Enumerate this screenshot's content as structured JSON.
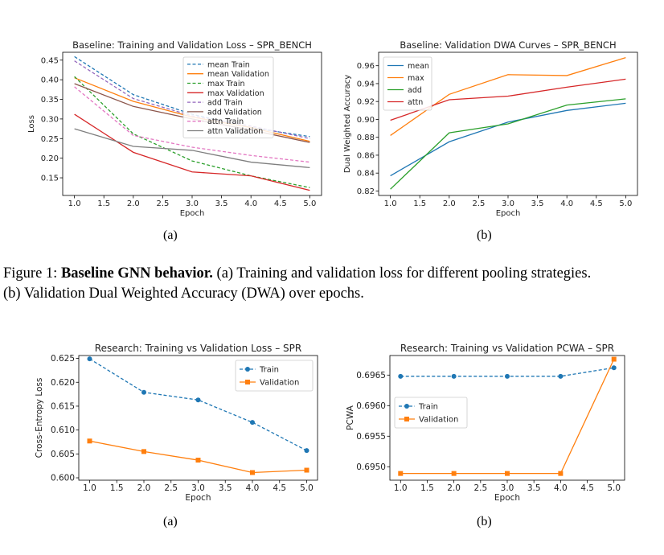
{
  "figure1": {
    "caption_label": "Figure 1:",
    "caption_title": "Baseline GNN behavior.",
    "caption_line1": "(a) Training and validation loss for different pooling strategies.",
    "caption_line2": "(b) Validation Dual Weighted Accuracy (DWA) over epochs.",
    "sub_a": "(a)",
    "sub_b": "(b)"
  },
  "figure2": {
    "sub_a": "(a)",
    "sub_b": "(b)"
  },
  "chart_data": [
    {
      "id": "loss",
      "type": "line",
      "title": "Baseline: Training and Validation Loss – SPR_BENCH",
      "xlabel": "Epoch",
      "ylabel": "Loss",
      "xlim": [
        0.8,
        5.2
      ],
      "ylim": [
        0.105,
        0.47
      ],
      "xticks": [
        1.0,
        1.5,
        2.0,
        2.5,
        3.0,
        3.5,
        4.0,
        4.5,
        5.0
      ],
      "yticks": [
        0.15,
        0.2,
        0.25,
        0.3,
        0.35,
        0.4,
        0.45
      ],
      "ydecimals": 2,
      "legend": "top-center",
      "grid": false,
      "x": [
        1,
        2,
        3,
        4,
        5
      ],
      "series": [
        {
          "name": "mean Train",
          "color": "#1f77b4",
          "dash": true,
          "marker": false,
          "values": [
            0.459,
            0.362,
            0.312,
            0.278,
            0.255
          ]
        },
        {
          "name": "mean Validation",
          "color": "#ff7f0e",
          "dash": false,
          "marker": false,
          "values": [
            0.405,
            0.345,
            0.305,
            0.278,
            0.243
          ]
        },
        {
          "name": "max Train",
          "color": "#2ca02c",
          "dash": true,
          "marker": false,
          "values": [
            0.408,
            0.262,
            0.193,
            0.155,
            0.125
          ]
        },
        {
          "name": "max Validation",
          "color": "#d62728",
          "dash": false,
          "marker": false,
          "values": [
            0.312,
            0.215,
            0.165,
            0.155,
            0.118
          ]
        },
        {
          "name": "add Train",
          "color": "#9467bd",
          "dash": true,
          "marker": false,
          "values": [
            0.448,
            0.352,
            0.308,
            0.282,
            0.25
          ]
        },
        {
          "name": "add Validation",
          "color": "#8c564b",
          "dash": false,
          "marker": false,
          "values": [
            0.39,
            0.332,
            0.3,
            0.272,
            0.24
          ]
        },
        {
          "name": "attn Train",
          "color": "#e377c2",
          "dash": true,
          "marker": false,
          "values": [
            0.382,
            0.258,
            0.228,
            0.207,
            0.19
          ]
        },
        {
          "name": "attn Validation",
          "color": "#7f7f7f",
          "dash": false,
          "marker": false,
          "values": [
            0.275,
            0.23,
            0.22,
            0.19,
            0.176
          ]
        }
      ]
    },
    {
      "id": "dwa",
      "type": "line",
      "title": "Baseline: Validation DWA Curves – SPR_BENCH",
      "xlabel": "Epoch",
      "ylabel": "Dual Weighted Accuracy",
      "xlim": [
        0.8,
        5.2
      ],
      "ylim": [
        0.815,
        0.975
      ],
      "xticks": [
        1.0,
        1.5,
        2.0,
        2.5,
        3.0,
        3.5,
        4.0,
        4.5,
        5.0
      ],
      "yticks": [
        0.82,
        0.84,
        0.86,
        0.88,
        0.9,
        0.92,
        0.94,
        0.96
      ],
      "ydecimals": 2,
      "legend": "top-left",
      "grid": false,
      "x": [
        1,
        2,
        3,
        4,
        5
      ],
      "series": [
        {
          "name": "mean",
          "color": "#1f77b4",
          "dash": false,
          "marker": false,
          "values": [
            0.837,
            0.875,
            0.897,
            0.91,
            0.918
          ]
        },
        {
          "name": "max",
          "color": "#ff7f0e",
          "dash": false,
          "marker": false,
          "values": [
            0.882,
            0.928,
            0.95,
            0.949,
            0.969
          ]
        },
        {
          "name": "add",
          "color": "#2ca02c",
          "dash": false,
          "marker": false,
          "values": [
            0.822,
            0.885,
            0.895,
            0.916,
            0.923
          ]
        },
        {
          "name": "attn",
          "color": "#d62728",
          "dash": false,
          "marker": false,
          "values": [
            0.899,
            0.922,
            0.926,
            0.936,
            0.945
          ]
        }
      ]
    },
    {
      "id": "celoss",
      "type": "line",
      "title": "Research: Training vs Validation Loss – SPR",
      "xlabel": "Epoch",
      "ylabel": "Cross-Entropy Loss",
      "xlim": [
        0.8,
        5.2
      ],
      "ylim": [
        0.5995,
        0.6256
      ],
      "xticks": [
        1.0,
        1.5,
        2.0,
        2.5,
        3.0,
        3.5,
        4.0,
        4.5,
        5.0
      ],
      "yticks": [
        0.6,
        0.605,
        0.61,
        0.615,
        0.62,
        0.625
      ],
      "ydecimals": 3,
      "legend": "top-right",
      "grid": false,
      "x": [
        1,
        2,
        3,
        4,
        5
      ],
      "series": [
        {
          "name": "Train",
          "color": "#1f77b4",
          "dash": true,
          "marker": "circle",
          "values": [
            0.6249,
            0.6179,
            0.6163,
            0.6116,
            0.6057
          ]
        },
        {
          "name": "Validation",
          "color": "#ff7f0e",
          "dash": false,
          "marker": "square",
          "values": [
            0.6077,
            0.6055,
            0.6037,
            0.6011,
            0.6016
          ]
        }
      ]
    },
    {
      "id": "pcwa",
      "type": "line",
      "title": "Research: Training vs Validation PCWA – SPR",
      "xlabel": "Epoch",
      "ylabel": "PCWA",
      "xlim": [
        0.8,
        5.2
      ],
      "ylim": [
        0.69478,
        0.69682
      ],
      "xticks": [
        1.0,
        1.5,
        2.0,
        2.5,
        3.0,
        3.5,
        4.0,
        4.5,
        5.0
      ],
      "yticks": [
        0.695,
        0.6955,
        0.696,
        0.6965
      ],
      "ydecimals": 4,
      "legend": "center-left",
      "grid": false,
      "x": [
        1,
        2,
        3,
        4,
        5
      ],
      "series": [
        {
          "name": "Train",
          "color": "#1f77b4",
          "dash": true,
          "marker": "circle",
          "values": [
            0.69648,
            0.69648,
            0.69648,
            0.69648,
            0.69662
          ]
        },
        {
          "name": "Validation",
          "color": "#ff7f0e",
          "dash": false,
          "marker": "square",
          "values": [
            0.69489,
            0.69489,
            0.69489,
            0.69489,
            0.69676
          ]
        }
      ]
    }
  ]
}
